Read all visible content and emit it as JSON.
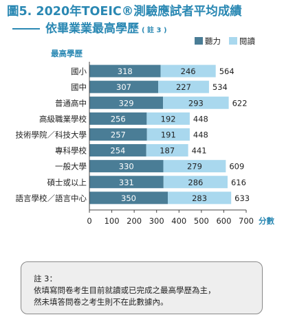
{
  "header": {
    "title": "圖5. 2020年TOEIC®測驗應試者平均成績",
    "subtitle": "依畢業業最高學歷",
    "subtitle_note": "( 註 3 )"
  },
  "chart_data": {
    "type": "bar",
    "stacked": true,
    "orientation": "horizontal",
    "category_axis_title": "最高學歷",
    "value_axis_title": "分數",
    "categories": [
      "國小",
      "國中",
      "普通高中",
      "高級職業學校",
      "技術學院／科技大學",
      "專科學校",
      "一般大學",
      "碩士或以上",
      "語言學校／語言中心"
    ],
    "series": [
      {
        "name": "聽力",
        "color": "#4a7d96",
        "values": [
          318,
          307,
          329,
          256,
          257,
          254,
          330,
          331,
          350
        ]
      },
      {
        "name": "閱讀",
        "color": "#a9d8ee",
        "values": [
          246,
          227,
          293,
          192,
          191,
          187,
          279,
          286,
          283
        ]
      }
    ],
    "totals": [
      564,
      534,
      622,
      448,
      448,
      441,
      609,
      616,
      633
    ],
    "xlim": [
      0,
      700
    ],
    "xticks": [
      0,
      100,
      200,
      300,
      400,
      500,
      600,
      700
    ],
    "legend_position": "top-right",
    "grid": false
  },
  "footnote": {
    "label": "註 3：",
    "lines": [
      "依填寫問卷考生目前就讀或已完成之最高學歷為主，",
      "然未填答問卷之考生則不在此數據內。"
    ]
  }
}
